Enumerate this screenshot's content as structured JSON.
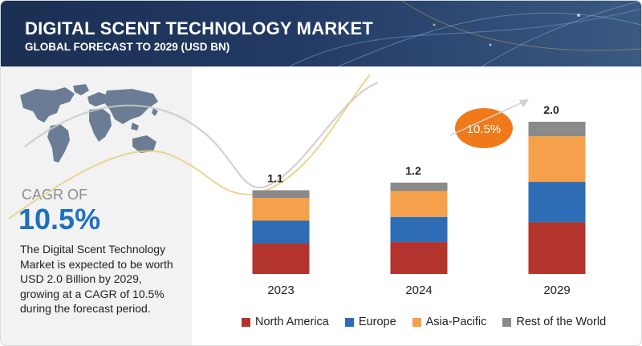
{
  "header": {
    "title": "DIGITAL SCENT TECHNOLOGY MARKET",
    "subtitle": "GLOBAL FORECAST TO 2029 (USD BN)"
  },
  "summary": {
    "cagr_label": "CAGR OF",
    "cagr_value": "10.5%",
    "description": "The Digital Scent Technology Market is expected to be worth USD  2.0 Billion by 2029, growing at a CAGR of 10.5% during the forecast period."
  },
  "colors": {
    "north_america": "#b3342c",
    "europe": "#2e6db5",
    "asia_pacific": "#f5a04a",
    "rest_of_world": "#8a8a8a",
    "cagr_bubble": "#f07a1a",
    "accent_blue": "#1e70c1"
  },
  "chart_data": {
    "type": "bar",
    "stacked": true,
    "title": "DIGITAL SCENT TECHNOLOGY MARKET",
    "subtitle": "GLOBAL FORECAST TO 2029 (USD BN)",
    "categories": [
      "2023",
      "2024",
      "2029"
    ],
    "totals": [
      1.1,
      1.2,
      2.0
    ],
    "total_labels": [
      "1.1",
      "1.2",
      "2.0"
    ],
    "series": [
      {
        "name": "North America",
        "color": "#b3342c",
        "values": [
          0.4,
          0.42,
          0.68
        ]
      },
      {
        "name": "Europe",
        "color": "#2e6db5",
        "values": [
          0.3,
          0.33,
          0.53
        ]
      },
      {
        "name": "Asia-Pacific",
        "color": "#f5a04a",
        "values": [
          0.3,
          0.34,
          0.6
        ]
      },
      {
        "name": "Rest of the World",
        "color": "#8a8a8a",
        "values": [
          0.1,
          0.11,
          0.19
        ]
      }
    ],
    "ylim": [
      0,
      2.0
    ],
    "grid": false,
    "legend_position": "bottom",
    "annotation": "10.5%"
  }
}
